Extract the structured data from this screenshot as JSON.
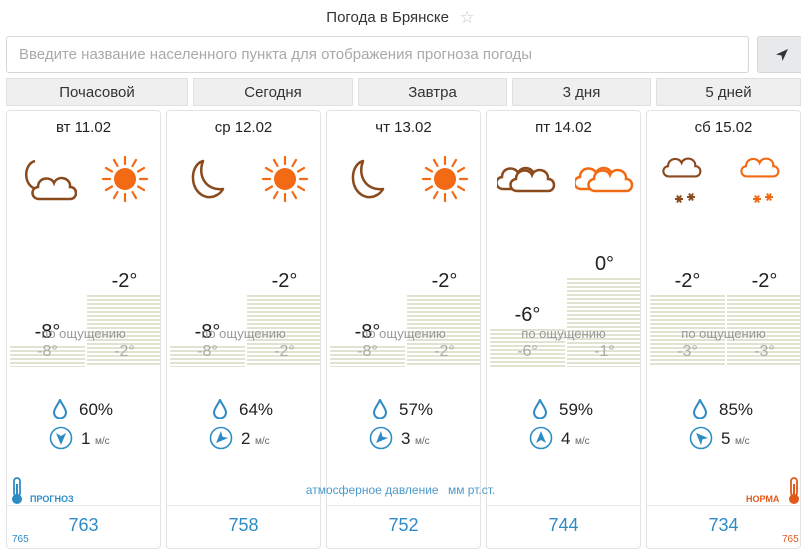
{
  "header": {
    "title": "Погода в Брянске"
  },
  "search": {
    "placeholder": "Введите название населенного пункта для отображения прогноза погоды"
  },
  "tabs": [
    "Почасовой",
    "Сегодня",
    "Завтра",
    "3 дня",
    "5 дней"
  ],
  "feels_label": "по ощущению",
  "wind_unit": "м/с",
  "pressure": {
    "label": "атмосферное давление",
    "unit": "мм рт.ст."
  },
  "legend": {
    "forecast_label": "ПРОГНОЗ",
    "norm_label": "НОРМА",
    "forecast_value": "765",
    "norm_value": "765",
    "forecast_color": "#2d8cc6",
    "norm_color": "#e05a1a"
  },
  "days": [
    {
      "date": "вт 11.02",
      "night_icon": "moon-cloud-icon",
      "day_icon": "sun-icon",
      "night_temp": "-8°",
      "day_temp": "-2°",
      "night_feels": "-8°",
      "day_feels": "-2°",
      "night_temp_value": -8,
      "day_temp_value": -2,
      "humidity": "60%",
      "wind_speed": "1",
      "wind_direction": "south-icon",
      "wind_deg": 180,
      "pressure": "763"
    },
    {
      "date": "ср 12.02",
      "night_icon": "moon-icon",
      "day_icon": "sun-icon",
      "night_temp": "-8°",
      "day_temp": "-2°",
      "night_feels": "-8°",
      "day_feels": "-2°",
      "night_temp_value": -8,
      "day_temp_value": -2,
      "humidity": "64%",
      "wind_speed": "2",
      "wind_direction": "south-west-icon",
      "wind_deg": 225,
      "pressure": "758"
    },
    {
      "date": "чт 13.02",
      "night_icon": "moon-icon",
      "day_icon": "sun-icon",
      "night_temp": "-8°",
      "day_temp": "-2°",
      "night_feels": "-8°",
      "day_feels": "-2°",
      "night_temp_value": -8,
      "day_temp_value": -2,
      "humidity": "57%",
      "wind_speed": "3",
      "wind_direction": "south-west-icon",
      "wind_deg": 225,
      "pressure": "752"
    },
    {
      "date": "пт 14.02",
      "night_icon": "cloudy-icon",
      "day_icon": "cloudy-icon",
      "night_temp": "-6°",
      "day_temp": "0°",
      "night_feels": "-6°",
      "day_feels": "-1°",
      "night_temp_value": -6,
      "day_temp_value": 0,
      "humidity": "59%",
      "wind_speed": "4",
      "wind_direction": "north-icon",
      "wind_deg": 0,
      "pressure": "744"
    },
    {
      "date": "сб 15.02",
      "night_icon": "snow-cloud-icon",
      "day_icon": "snow-cloud-icon",
      "night_temp": "-2°",
      "day_temp": "-2°",
      "night_feels": "-3°",
      "day_feels": "-3°",
      "night_temp_value": -2,
      "day_temp_value": -2,
      "humidity": "85%",
      "wind_speed": "5",
      "wind_direction": "north-west-icon",
      "wind_deg": 315,
      "pressure": "734"
    }
  ],
  "colors": {
    "night_icon": "#8a4a1e",
    "day_icon": "#f26a14",
    "accent": "#2d8cc6",
    "bar": "#dfe3cf"
  }
}
